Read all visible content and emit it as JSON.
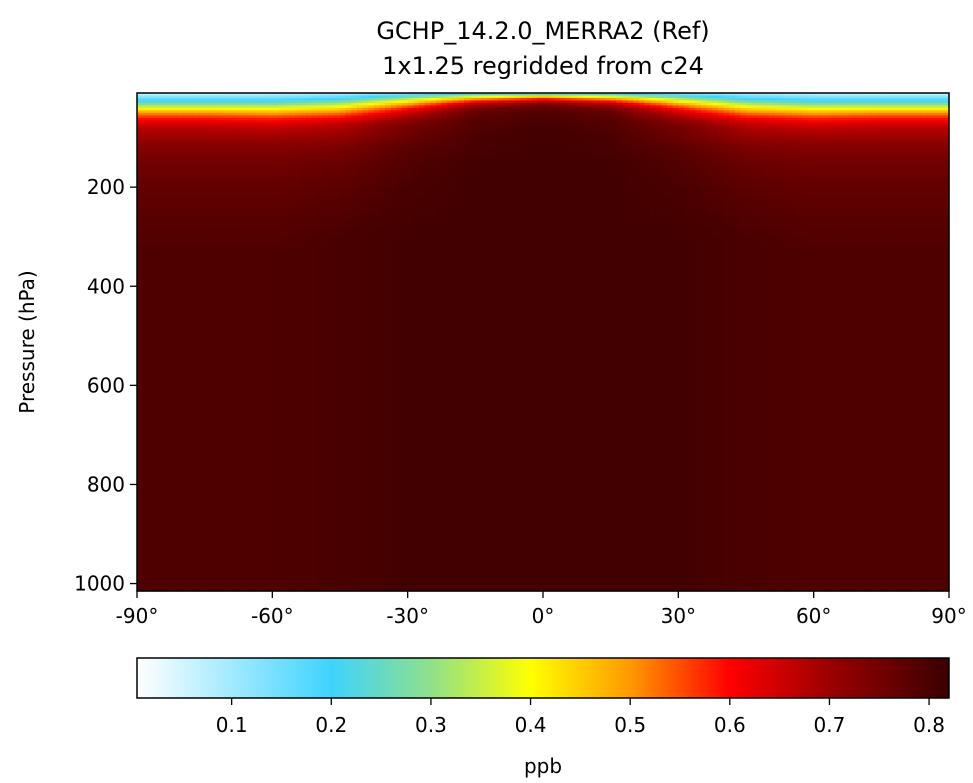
{
  "chart_data": {
    "type": "heatmap",
    "title": "GCHP_14.2.0_MERRA2 (Ref)",
    "subtitle": "1x1.25 regridded from c24",
    "xlabel": "",
    "ylabel": "Pressure (hPa)",
    "x_ticks": [
      "-90°",
      "-60°",
      "-30°",
      "0°",
      "30°",
      "60°",
      "90°"
    ],
    "x_tick_values": [
      -90,
      -60,
      -30,
      0,
      30,
      60,
      90
    ],
    "y_ticks": [
      "200",
      "400",
      "600",
      "800",
      "1000"
    ],
    "y_tick_values": [
      200,
      400,
      600,
      800,
      1000
    ],
    "xlim": [
      -90,
      90
    ],
    "ylim": [
      1015,
      10
    ],
    "colorbar": {
      "label": "ppb",
      "range": [
        0.005,
        0.82
      ],
      "ticks": [
        "0.1",
        "0.2",
        "0.3",
        "0.4",
        "0.5",
        "0.6",
        "0.7",
        "0.8"
      ],
      "tick_values": [
        0.1,
        0.2,
        0.3,
        0.4,
        0.5,
        0.6,
        0.7,
        0.8
      ],
      "colormap": [
        [
          0.005,
          "#ffffff"
        ],
        [
          0.2,
          "#3fd3ff"
        ],
        [
          0.3,
          "#8fe08a"
        ],
        [
          0.4,
          "#ffff00"
        ],
        [
          0.5,
          "#ff9900"
        ],
        [
          0.6,
          "#ff0000"
        ],
        [
          0.7,
          "#9c0000"
        ],
        [
          0.82,
          "#3a0000"
        ]
      ]
    },
    "field": {
      "latitudes": [
        -90,
        -75,
        -60,
        -45,
        -30,
        -15,
        0,
        15,
        30,
        45,
        60,
        75,
        90
      ],
      "pressures": [
        10,
        20,
        30,
        40,
        50,
        60,
        70,
        80,
        100,
        120,
        150,
        200,
        300,
        1015
      ],
      "values": [
        [
          0.05,
          0.05,
          0.06,
          0.08,
          0.12,
          0.15,
          0.16,
          0.15,
          0.12,
          0.08,
          0.06,
          0.05,
          0.05
        ],
        [
          0.15,
          0.15,
          0.15,
          0.18,
          0.3,
          0.45,
          0.55,
          0.45,
          0.3,
          0.18,
          0.15,
          0.15,
          0.15
        ],
        [
          0.25,
          0.25,
          0.25,
          0.3,
          0.45,
          0.65,
          0.72,
          0.65,
          0.45,
          0.3,
          0.25,
          0.25,
          0.25
        ],
        [
          0.38,
          0.38,
          0.38,
          0.42,
          0.58,
          0.74,
          0.78,
          0.74,
          0.58,
          0.42,
          0.38,
          0.38,
          0.38
        ],
        [
          0.5,
          0.5,
          0.48,
          0.52,
          0.65,
          0.77,
          0.79,
          0.77,
          0.65,
          0.52,
          0.48,
          0.5,
          0.5
        ],
        [
          0.58,
          0.58,
          0.57,
          0.6,
          0.7,
          0.78,
          0.8,
          0.78,
          0.7,
          0.6,
          0.57,
          0.58,
          0.58
        ],
        [
          0.63,
          0.63,
          0.62,
          0.65,
          0.73,
          0.79,
          0.8,
          0.79,
          0.73,
          0.65,
          0.62,
          0.63,
          0.63
        ],
        [
          0.67,
          0.67,
          0.66,
          0.68,
          0.75,
          0.79,
          0.81,
          0.79,
          0.75,
          0.68,
          0.66,
          0.67,
          0.67
        ],
        [
          0.7,
          0.7,
          0.7,
          0.71,
          0.76,
          0.8,
          0.81,
          0.8,
          0.76,
          0.71,
          0.7,
          0.7,
          0.7
        ],
        [
          0.73,
          0.73,
          0.73,
          0.74,
          0.78,
          0.8,
          0.81,
          0.8,
          0.78,
          0.74,
          0.73,
          0.73,
          0.73
        ],
        [
          0.75,
          0.75,
          0.75,
          0.76,
          0.79,
          0.81,
          0.81,
          0.81,
          0.79,
          0.76,
          0.75,
          0.75,
          0.75
        ],
        [
          0.77,
          0.77,
          0.77,
          0.78,
          0.8,
          0.81,
          0.81,
          0.81,
          0.8,
          0.78,
          0.77,
          0.77,
          0.77
        ],
        [
          0.79,
          0.79,
          0.79,
          0.8,
          0.81,
          0.81,
          0.81,
          0.81,
          0.81,
          0.8,
          0.79,
          0.79,
          0.79
        ],
        [
          0.8,
          0.8,
          0.8,
          0.8,
          0.81,
          0.81,
          0.81,
          0.81,
          0.81,
          0.8,
          0.8,
          0.8,
          0.8
        ]
      ]
    }
  }
}
